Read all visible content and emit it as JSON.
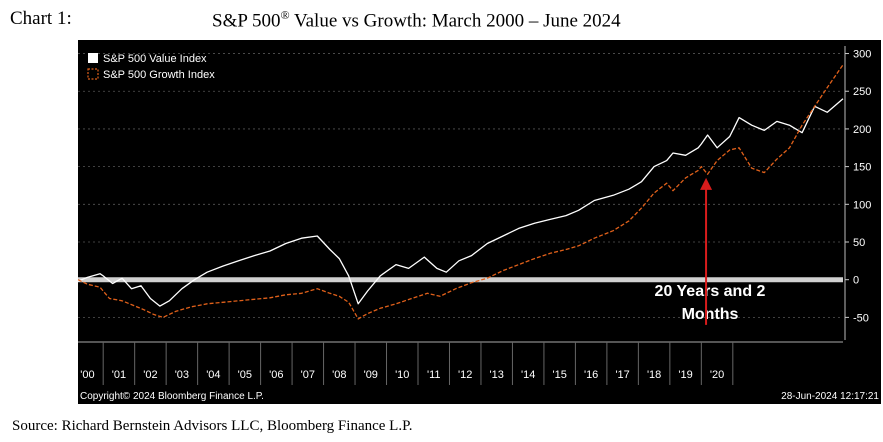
{
  "caption": {
    "label": "Chart 1:",
    "title_pre": "S&P 500",
    "title_sup": "®",
    "title_post": " Value vs Growth:  March 2000 – June 2024"
  },
  "source": "Source: Richard Bernstein Advisors LLC, Bloomberg Finance L.P.",
  "chart_data": {
    "type": "line",
    "background": "#000000",
    "y_axis_side": "right",
    "ylim": [
      -80,
      310
    ],
    "yticks": [
      -50,
      0,
      50,
      100,
      150,
      200,
      250,
      300
    ],
    "xlim": [
      2000.2,
      2024.5
    ],
    "x_tick_labels": [
      "'00",
      "'01",
      "'02",
      "'03",
      "'04",
      "'05",
      "'06",
      "'07",
      "'08",
      "'09",
      "'10",
      "'11",
      "'12",
      "'13",
      "'14",
      "'15",
      "'16",
      "'17",
      "'18",
      "'19",
      "'20"
    ],
    "zero_line_color": "#d0d0d0",
    "legend_position": "top-left",
    "series": [
      {
        "name": "S&P 500 Value Index",
        "color": "#ffffff",
        "style": "solid",
        "x": [
          2000.2,
          2000.5,
          2000.9,
          2001.0,
          2001.3,
          2001.6,
          2001.9,
          2002.2,
          2002.5,
          2002.8,
          2003.1,
          2003.5,
          2003.9,
          2004.3,
          2004.8,
          2005.3,
          2005.8,
          2006.3,
          2006.8,
          2007.3,
          2007.8,
          2008.2,
          2008.5,
          2008.8,
          2009.1,
          2009.4,
          2009.8,
          2010.3,
          2010.7,
          2011.2,
          2011.6,
          2011.9,
          2012.3,
          2012.7,
          2013.2,
          2013.7,
          2014.2,
          2014.7,
          2015.2,
          2015.7,
          2016.1,
          2016.6,
          2017.2,
          2017.7,
          2018.1,
          2018.5,
          2018.9,
          2019.1,
          2019.5,
          2019.9,
          2020.0,
          2020.2,
          2020.5,
          2020.9,
          2021.2,
          2021.6,
          2022.0,
          2022.4,
          2022.8,
          2023.2,
          2023.6,
          2024.0,
          2024.5
        ],
        "y": [
          -2,
          3,
          8,
          5,
          -5,
          2,
          -12,
          -8,
          -25,
          -35,
          -28,
          -12,
          0,
          10,
          18,
          25,
          32,
          38,
          48,
          55,
          58,
          40,
          28,
          5,
          -32,
          -15,
          5,
          20,
          15,
          30,
          15,
          10,
          25,
          32,
          48,
          58,
          68,
          75,
          80,
          85,
          92,
          105,
          112,
          120,
          130,
          150,
          158,
          168,
          165,
          175,
          180,
          192,
          175,
          190,
          215,
          205,
          198,
          210,
          205,
          195,
          230,
          222,
          240
        ]
      },
      {
        "name": "S&P 500 Growth Index",
        "color": "#e0601a",
        "style": "dashed",
        "x": [
          2000.2,
          2000.5,
          2000.9,
          2001.2,
          2001.6,
          2001.9,
          2002.3,
          2002.6,
          2002.9,
          2003.3,
          2003.8,
          2004.3,
          2004.8,
          2005.3,
          2005.8,
          2006.3,
          2006.8,
          2007.3,
          2007.8,
          2008.2,
          2008.5,
          2008.8,
          2009.1,
          2009.4,
          2009.8,
          2010.3,
          2010.8,
          2011.3,
          2011.7,
          2012.2,
          2012.7,
          2013.2,
          2013.7,
          2014.2,
          2014.7,
          2015.2,
          2015.7,
          2016.1,
          2016.6,
          2017.2,
          2017.7,
          2018.1,
          2018.5,
          2018.9,
          2019.1,
          2019.5,
          2019.9,
          2020.0,
          2020.2,
          2020.5,
          2020.9,
          2021.2,
          2021.6,
          2022.0,
          2022.4,
          2022.8,
          2023.2,
          2023.6,
          2024.0,
          2024.5
        ],
        "y": [
          0,
          -6,
          -10,
          -25,
          -28,
          -33,
          -40,
          -46,
          -50,
          -42,
          -36,
          -32,
          -30,
          -28,
          -26,
          -24,
          -20,
          -18,
          -12,
          -18,
          -22,
          -30,
          -52,
          -45,
          -38,
          -32,
          -25,
          -18,
          -22,
          -12,
          -4,
          2,
          12,
          20,
          28,
          35,
          40,
          45,
          55,
          65,
          78,
          95,
          115,
          128,
          118,
          135,
          145,
          150,
          140,
          158,
          172,
          175,
          148,
          142,
          160,
          175,
          205,
          230,
          255,
          285
        ]
      }
    ],
    "annotation": {
      "text_line1": "20 Years and 2",
      "text_line2": "Months",
      "arrow_color": "#d81c1c",
      "arrow_x": 2020.15,
      "arrow_y_from": -60,
      "arrow_y_to": 135
    },
    "copyright": "Copyright© 2024 Bloomberg Finance L.P.",
    "timestamp": "28-Jun-2024 12:17:21"
  }
}
